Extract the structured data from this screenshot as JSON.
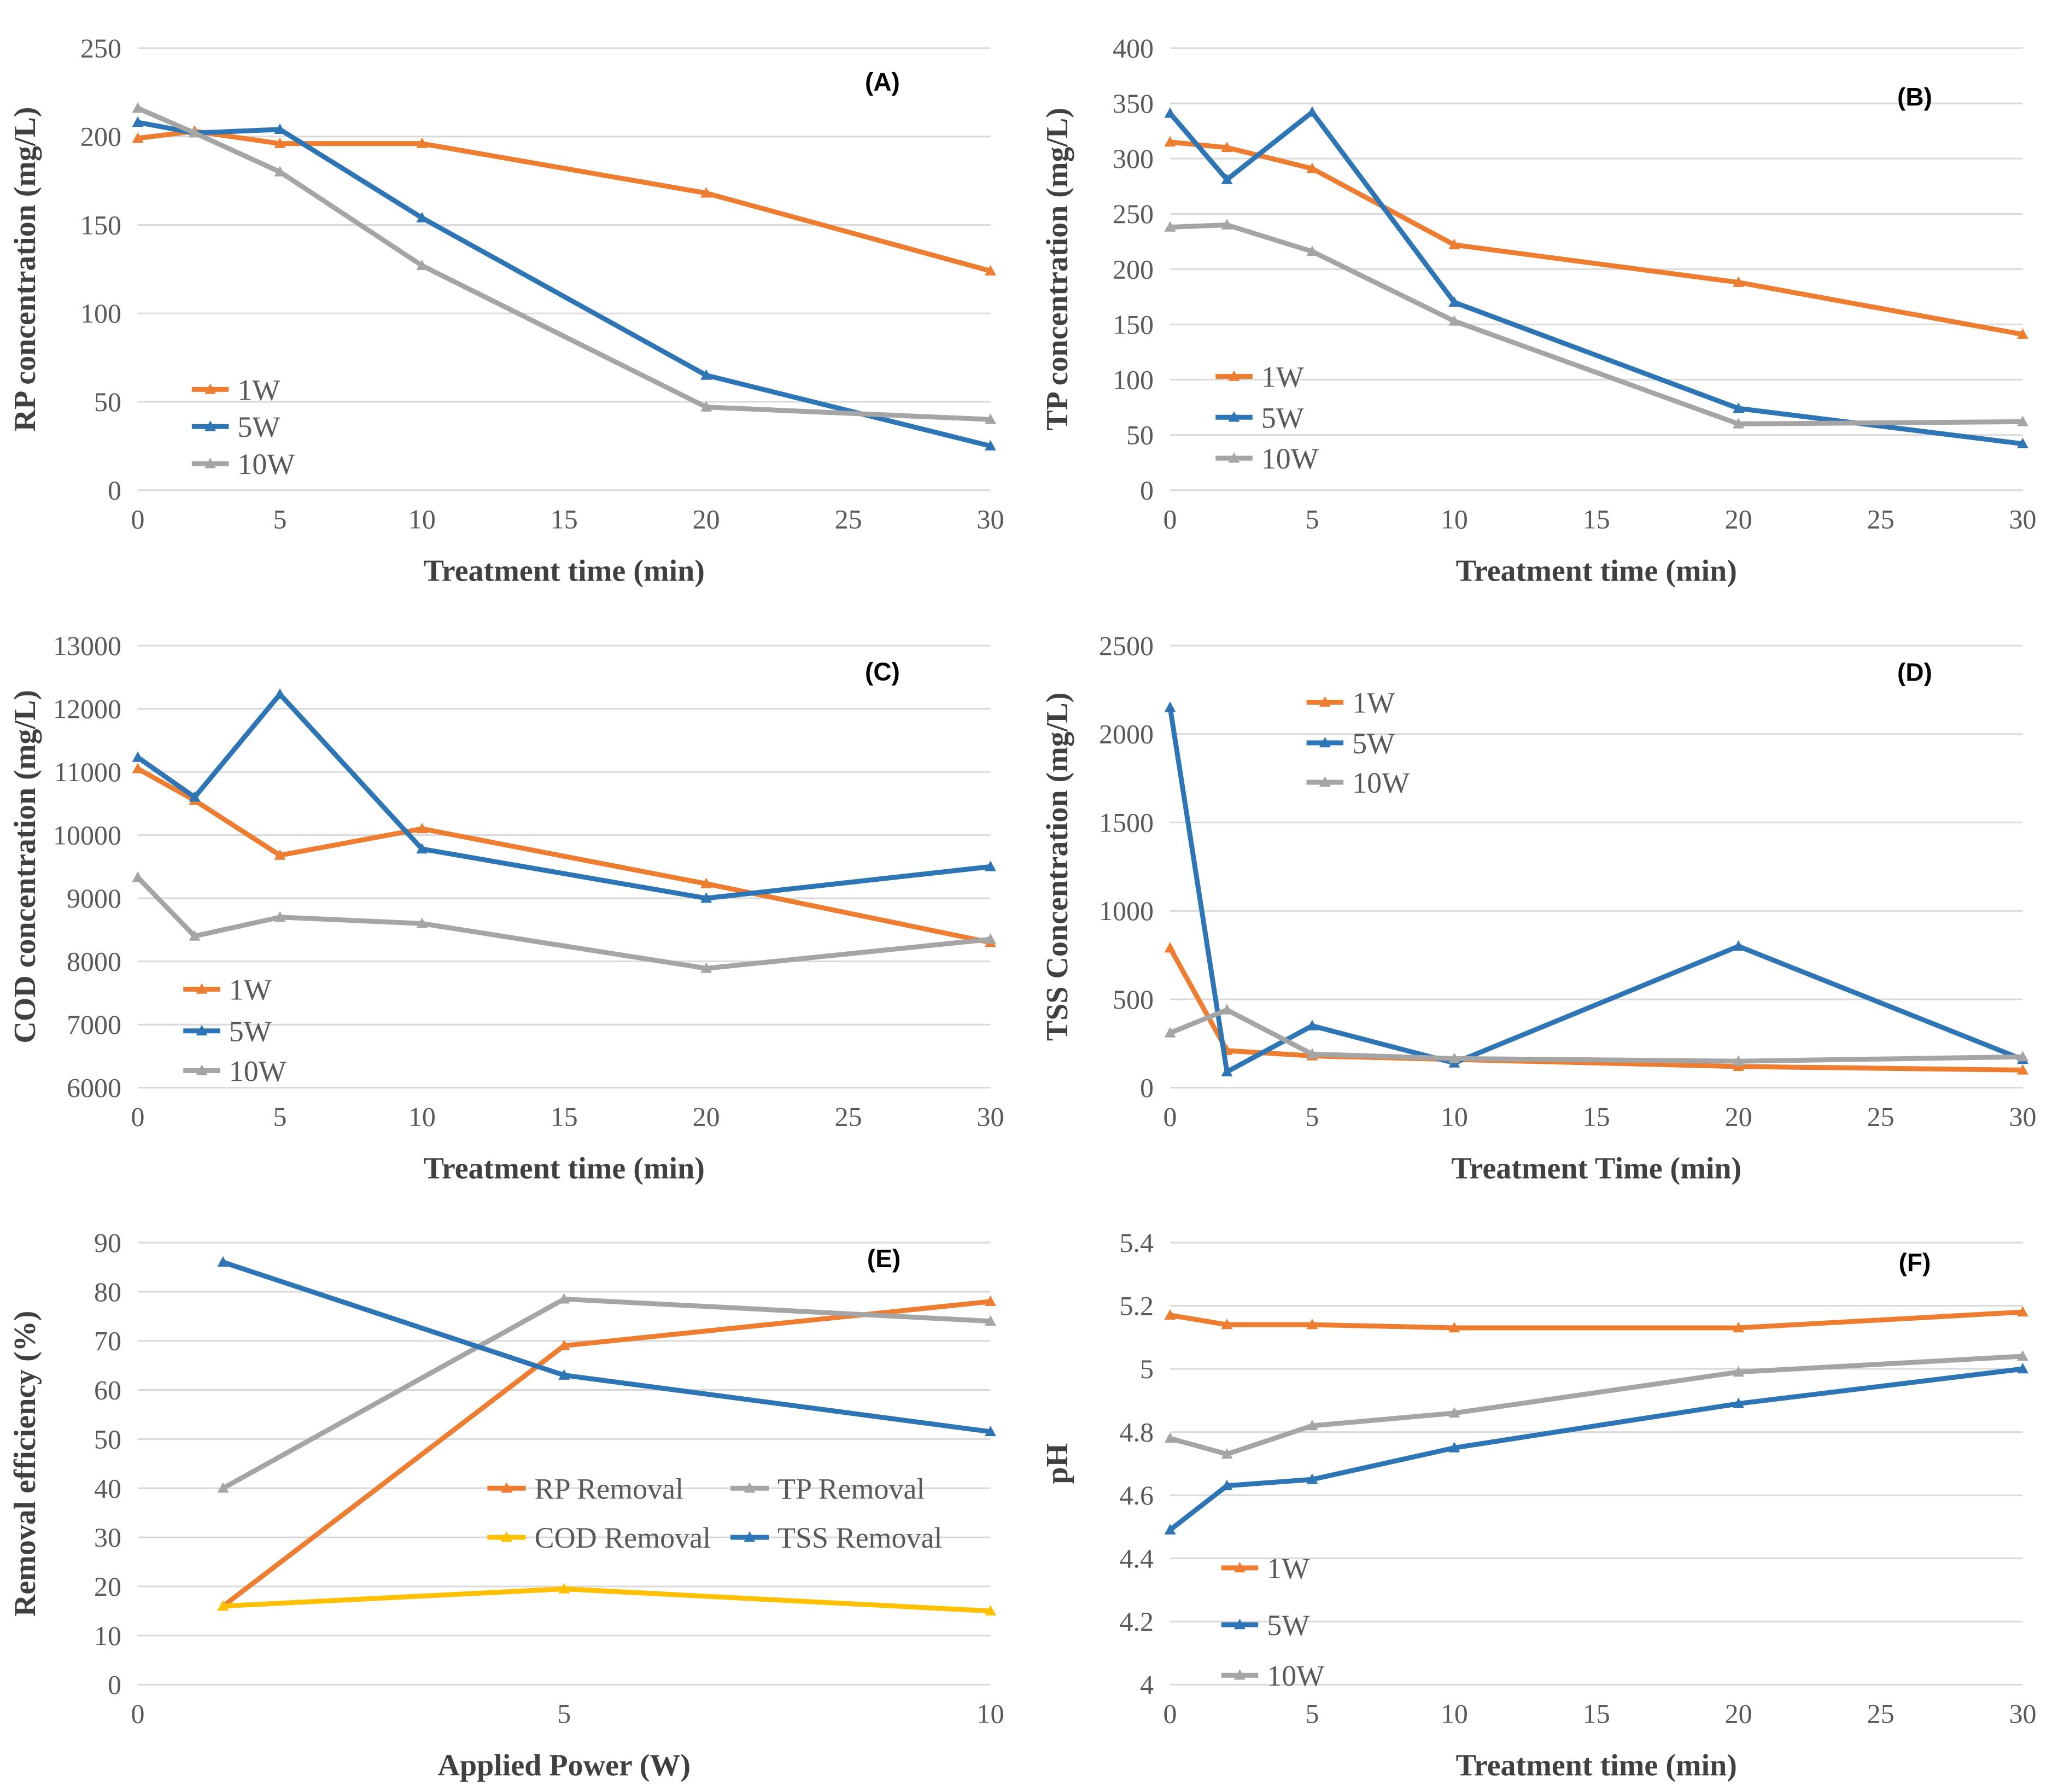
{
  "figure": {
    "panels_order": [
      "A",
      "B",
      "C",
      "D",
      "E",
      "F"
    ]
  },
  "colors": {
    "series_orange": "#ED7D31",
    "series_blue": "#2E75B6",
    "series_gray": "#A5A5A5",
    "series_yellow": "#FFC000",
    "gridline": "#D9D9D9",
    "tick_label": "#595959",
    "axis_title": "#404040",
    "legend_label": "#595959",
    "panel_label": "#000000",
    "background": "#FFFFFF"
  },
  "chart_data": [
    {
      "id": "A",
      "panel_label": "(A)",
      "type": "line",
      "xlabel": "Treatment time (min)",
      "ylabel": "RP concentration (mg/L)",
      "x": [
        0,
        2,
        5,
        10,
        20,
        30
      ],
      "xlim": [
        0,
        30
      ],
      "xticks": [
        0,
        5,
        10,
        15,
        20,
        25,
        30
      ],
      "ylim": [
        0,
        250
      ],
      "yticks": [
        0,
        50,
        100,
        150,
        200,
        250
      ],
      "grid": "horizontal",
      "legend_position": "inside-lower-left",
      "label_pos": {
        "x": 26.2,
        "y": 226
      },
      "series": [
        {
          "name": "1W",
          "color_key": "series_orange",
          "marker": "triangle",
          "values": [
            199,
            203,
            196,
            196,
            168,
            124
          ]
        },
        {
          "name": "5W",
          "color_key": "series_blue",
          "marker": "triangle",
          "values": [
            208,
            202,
            204,
            154,
            65,
            25
          ]
        },
        {
          "name": "10W",
          "color_key": "series_gray",
          "marker": "triangle",
          "values": [
            216,
            202,
            180,
            127,
            47,
            40
          ]
        }
      ],
      "legend": {
        "key_len_x": 1.3,
        "items": [
          {
            "label": "1W",
            "x": 1.9,
            "y": 57
          },
          {
            "label": "5W",
            "x": 1.9,
            "y": 36
          },
          {
            "label": "10W",
            "x": 1.9,
            "y": 15
          }
        ]
      }
    },
    {
      "id": "B",
      "panel_label": "(B)",
      "type": "line",
      "xlabel": "Treatment time (min)",
      "ylabel": "TP concentration (mg/L)",
      "x": [
        0,
        2,
        5,
        10,
        20,
        30
      ],
      "xlim": [
        0,
        30
      ],
      "xticks": [
        0,
        5,
        10,
        15,
        20,
        25,
        30
      ],
      "ylim": [
        0,
        400
      ],
      "yticks": [
        0,
        50,
        100,
        150,
        200,
        250,
        300,
        350,
        400
      ],
      "grid": "horizontal",
      "legend_position": "inside-middle-left",
      "label_pos": {
        "x": 26.2,
        "y": 348
      },
      "series": [
        {
          "name": "1W",
          "color_key": "series_orange",
          "marker": "triangle",
          "values": [
            315,
            310,
            291,
            222,
            188,
            141
          ]
        },
        {
          "name": "5W",
          "color_key": "series_blue",
          "marker": "triangle",
          "values": [
            341,
            281,
            342,
            170,
            74,
            42
          ]
        },
        {
          "name": "10W",
          "color_key": "series_gray",
          "marker": "triangle",
          "values": [
            238,
            240,
            216,
            153,
            60,
            62
          ]
        }
      ],
      "legend": {
        "key_len_x": 1.3,
        "items": [
          {
            "label": "1W",
            "x": 1.6,
            "y": 103
          },
          {
            "label": "5W",
            "x": 1.6,
            "y": 66
          },
          {
            "label": "10W",
            "x": 1.6,
            "y": 29
          }
        ]
      }
    },
    {
      "id": "C",
      "panel_label": "(C)",
      "type": "line",
      "xlabel": "Treatment time (min)",
      "ylabel": "COD concentration (mg/L)",
      "x": [
        0,
        2,
        5,
        10,
        20,
        30
      ],
      "xlim": [
        0,
        30
      ],
      "xticks": [
        0,
        5,
        10,
        15,
        20,
        25,
        30
      ],
      "ylim": [
        6000,
        13000
      ],
      "yticks": [
        6000,
        7000,
        8000,
        9000,
        10000,
        11000,
        12000,
        13000
      ],
      "grid": "horizontal",
      "legend_position": "inside-lower-left",
      "label_pos": {
        "x": 26.2,
        "y": 12450
      },
      "series": [
        {
          "name": "1W",
          "color_key": "series_orange",
          "marker": "triangle",
          "values": [
            11050,
            10550,
            9680,
            10100,
            9230,
            8300
          ]
        },
        {
          "name": "5W",
          "color_key": "series_blue",
          "marker": "triangle",
          "values": [
            11230,
            10600,
            12230,
            9780,
            9000,
            9500
          ]
        },
        {
          "name": "10W",
          "color_key": "series_gray",
          "marker": "triangle",
          "values": [
            9330,
            8400,
            8700,
            8600,
            7890,
            8350
          ]
        }
      ],
      "legend": {
        "key_len_x": 1.3,
        "items": [
          {
            "label": "1W",
            "x": 1.6,
            "y": 7560
          },
          {
            "label": "5W",
            "x": 1.6,
            "y": 6900
          },
          {
            "label": "10W",
            "x": 1.6,
            "y": 6270
          }
        ]
      }
    },
    {
      "id": "D",
      "panel_label": "(D)",
      "type": "line",
      "xlabel": "Treatment Time (min)",
      "ylabel": "TSS Concentration (mg/L)",
      "x": [
        0,
        2,
        5,
        10,
        20,
        30
      ],
      "xlim": [
        0,
        30
      ],
      "xticks": [
        0,
        5,
        10,
        15,
        20,
        25,
        30
      ],
      "ylim": [
        0,
        2500
      ],
      "yticks": [
        0,
        500,
        1000,
        1500,
        2000,
        2500
      ],
      "grid": "horizontal",
      "legend_position": "inside-upper-left",
      "label_pos": {
        "x": 26.2,
        "y": 2300
      },
      "series": [
        {
          "name": "1W",
          "color_key": "series_orange",
          "marker": "triangle",
          "values": [
            790,
            210,
            180,
            160,
            120,
            100
          ]
        },
        {
          "name": "5W",
          "color_key": "series_blue",
          "marker": "triangle",
          "values": [
            2150,
            90,
            350,
            140,
            800,
            160
          ]
        },
        {
          "name": "10W",
          "color_key": "series_gray",
          "marker": "triangle",
          "values": [
            310,
            440,
            190,
            165,
            150,
            175
          ]
        }
      ],
      "legend": {
        "key_len_x": 1.3,
        "items": [
          {
            "label": "1W",
            "x": 4.8,
            "y": 2180
          },
          {
            "label": "5W",
            "x": 4.8,
            "y": 1950
          },
          {
            "label": "10W",
            "x": 4.8,
            "y": 1727
          }
        ]
      }
    },
    {
      "id": "E",
      "panel_label": "(E)",
      "type": "line",
      "xlabel": "Applied Power (W)",
      "ylabel": "Removal efficiency (%)",
      "x": [
        1,
        5,
        10
      ],
      "xlim": [
        0,
        10
      ],
      "xticks": [
        0,
        5,
        10
      ],
      "ylim": [
        0,
        90
      ],
      "yticks": [
        0,
        10,
        20,
        30,
        40,
        50,
        60,
        70,
        80,
        90
      ],
      "grid": "horizontal",
      "legend_position": "inside-middle-right-2col",
      "label_pos": {
        "x": 8.75,
        "y": 85
      },
      "series": [
        {
          "name": "RP Removal",
          "color_key": "series_orange",
          "marker": "triangle",
          "values": [
            16,
            69,
            78
          ]
        },
        {
          "name": "TP Removal",
          "color_key": "series_gray",
          "marker": "triangle",
          "values": [
            40,
            78.5,
            74
          ]
        },
        {
          "name": "COD Removal",
          "color_key": "series_yellow",
          "marker": "triangle",
          "values": [
            16,
            19.5,
            15
          ]
        },
        {
          "name": "TSS Removal",
          "color_key": "series_blue",
          "marker": "triangle",
          "values": [
            86,
            63,
            51.5
          ]
        }
      ],
      "legend": {
        "key_len_x": 0.45,
        "items": [
          {
            "label": "RP Removal",
            "x": 4.1,
            "y": 40
          },
          {
            "label": "TP Removal",
            "x": 6.95,
            "y": 40
          },
          {
            "label": "COD Removal",
            "x": 4.1,
            "y": 30
          },
          {
            "label": "TSS Removal",
            "x": 6.95,
            "y": 30
          }
        ]
      }
    },
    {
      "id": "F",
      "panel_label": "(F)",
      "type": "line",
      "xlabel": "Treatment time (min)",
      "ylabel": "pH",
      "x": [
        0,
        2,
        5,
        10,
        20,
        30
      ],
      "xlim": [
        0,
        30
      ],
      "xticks": [
        0,
        5,
        10,
        15,
        20,
        25,
        30
      ],
      "ylim": [
        4,
        5.4
      ],
      "yticks": [
        4,
        4.2,
        4.4,
        4.6,
        4.8,
        5,
        5.2,
        5.4
      ],
      "grid": "horizontal",
      "legend_position": "inside-lower-left",
      "label_pos": {
        "x": 26.2,
        "y": 5.31
      },
      "series": [
        {
          "name": "1W",
          "color_key": "series_orange",
          "marker": "triangle",
          "values": [
            5.17,
            5.14,
            5.14,
            5.13,
            5.13,
            5.18
          ]
        },
        {
          "name": "5W",
          "color_key": "series_blue",
          "marker": "triangle",
          "values": [
            4.49,
            4.63,
            4.65,
            4.75,
            4.89,
            5.0
          ]
        },
        {
          "name": "10W",
          "color_key": "series_gray",
          "marker": "triangle",
          "values": [
            4.78,
            4.73,
            4.82,
            4.86,
            4.99,
            5.04
          ]
        }
      ],
      "legend": {
        "key_len_x": 1.3,
        "items": [
          {
            "label": "1W",
            "x": 1.8,
            "y": 4.37
          },
          {
            "label": "5W",
            "x": 1.8,
            "y": 4.19
          },
          {
            "label": "10W",
            "x": 1.8,
            "y": 4.03
          }
        ]
      }
    }
  ]
}
